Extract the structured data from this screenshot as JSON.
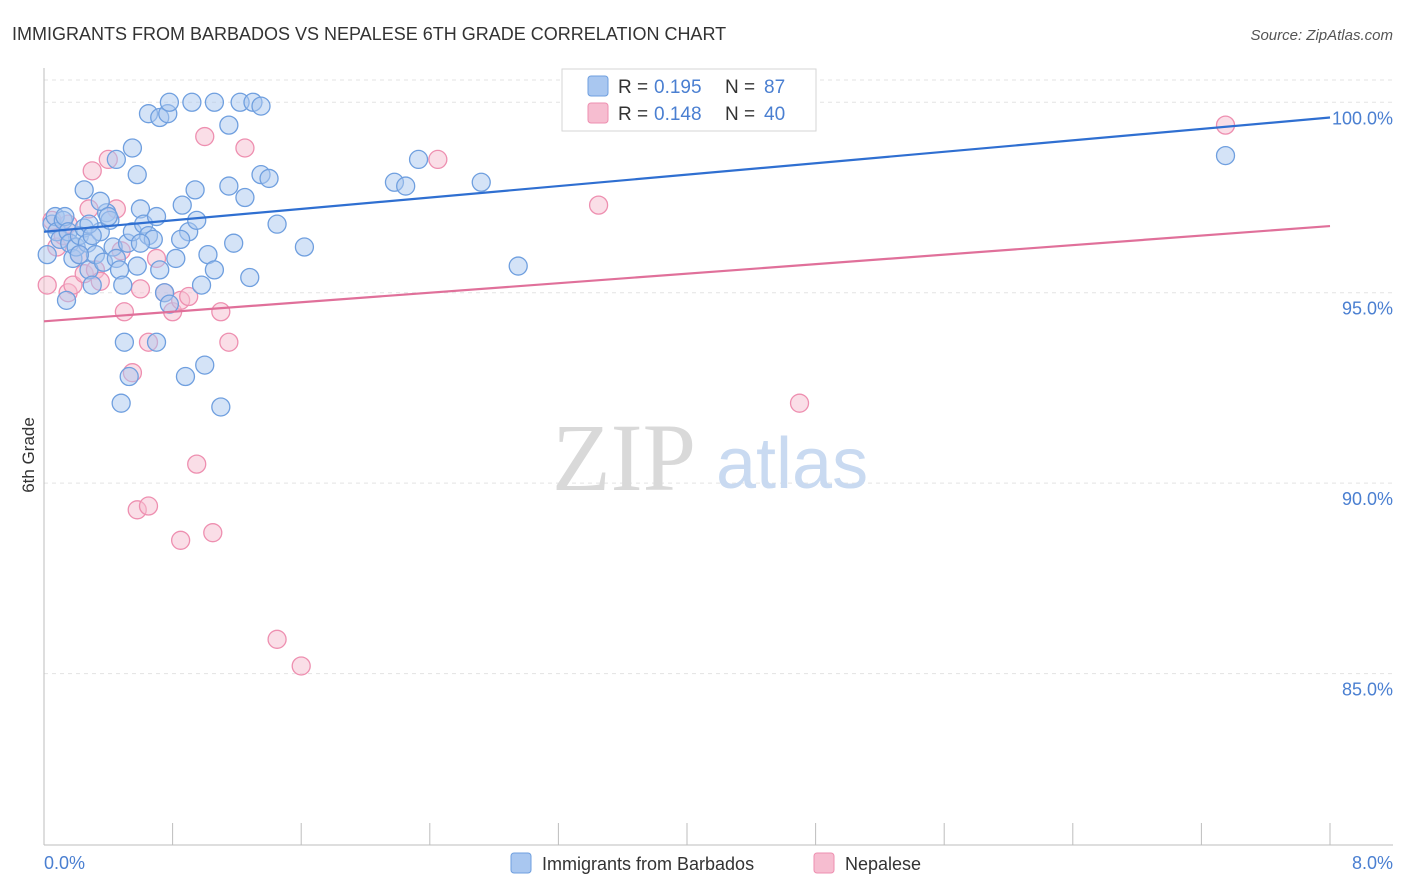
{
  "title": "IMMIGRANTS FROM BARBADOS VS NEPALESE 6TH GRADE CORRELATION CHART",
  "source": "Source: ZipAtlas.com",
  "watermark": {
    "zip": "ZIP",
    "atlas": "atlas"
  },
  "colors": {
    "blue_fill": "#a9c7f0",
    "blue_stroke": "#6f9fdf",
    "blue_line": "#2f6fd1",
    "pink_fill": "#f6bdd0",
    "pink_stroke": "#ee8fb0",
    "pink_line": "#e0709a",
    "tick_text": "#4a7fd1",
    "grid": "#e3e3e3"
  },
  "legend": {
    "rows": [
      {
        "r_label": "R = ",
        "r_value": "0.195",
        "n_label": "N = ",
        "n_value": "87"
      },
      {
        "r_label": "R = ",
        "r_value": "0.148",
        "n_label": "N = ",
        "n_value": "40"
      }
    ]
  },
  "bottom_legend": [
    "Immigrants from Barbados",
    "Nepalese"
  ],
  "chart_data": {
    "type": "scatter",
    "title": "IMMIGRANTS FROM BARBADOS VS NEPALESE 6TH GRADE CORRELATION CHART",
    "xlabel": "",
    "ylabel": "6th Grade",
    "xlim": [
      0.0,
      8.0
    ],
    "ylim": [
      80.5,
      100.9
    ],
    "x_tick_labels": [
      "0.0%",
      "8.0%"
    ],
    "y_ticks": [
      85,
      90,
      95,
      100
    ],
    "y_tick_labels": [
      "85.0%",
      "90.0%",
      "95.0%",
      "100.0%"
    ],
    "grid": true,
    "legend_position": "top-center",
    "series": [
      {
        "name": "Immigrants from Barbados",
        "color": "#6f9fdf",
        "R": 0.195,
        "N": 87,
        "trend": {
          "x": [
            0.0,
            8.0
          ],
          "y": [
            96.6,
            99.6
          ]
        },
        "points": [
          [
            0.05,
            96.8
          ],
          [
            0.07,
            97.0
          ],
          [
            0.08,
            96.6
          ],
          [
            0.1,
            96.4
          ],
          [
            0.12,
            96.9
          ],
          [
            0.13,
            97.0
          ],
          [
            0.15,
            96.6
          ],
          [
            0.16,
            96.3
          ],
          [
            0.18,
            95.9
          ],
          [
            0.2,
            96.2
          ],
          [
            0.22,
            96.5
          ],
          [
            0.25,
            96.7
          ],
          [
            0.27,
            96.3
          ],
          [
            0.28,
            95.6
          ],
          [
            0.3,
            95.2
          ],
          [
            0.32,
            96.0
          ],
          [
            0.35,
            96.6
          ],
          [
            0.37,
            95.8
          ],
          [
            0.39,
            97.1
          ],
          [
            0.41,
            96.9
          ],
          [
            0.43,
            96.2
          ],
          [
            0.45,
            95.9
          ],
          [
            0.47,
            95.6
          ],
          [
            0.49,
            95.2
          ],
          [
            0.52,
            96.3
          ],
          [
            0.55,
            96.6
          ],
          [
            0.58,
            95.7
          ],
          [
            0.6,
            97.2
          ],
          [
            0.62,
            96.8
          ],
          [
            0.65,
            96.5
          ],
          [
            0.68,
            96.4
          ],
          [
            0.7,
            97.0
          ],
          [
            0.72,
            95.6
          ],
          [
            0.75,
            95.0
          ],
          [
            0.78,
            94.7
          ],
          [
            0.82,
            95.9
          ],
          [
            0.86,
            97.3
          ],
          [
            0.9,
            96.6
          ],
          [
            0.94,
            97.7
          ],
          [
            0.98,
            95.2
          ],
          [
            1.02,
            96.0
          ],
          [
            1.06,
            95.6
          ],
          [
            0.25,
            97.7
          ],
          [
            0.35,
            97.4
          ],
          [
            0.45,
            98.5
          ],
          [
            0.55,
            98.8
          ],
          [
            0.58,
            98.1
          ],
          [
            0.65,
            99.7
          ],
          [
            0.72,
            99.6
          ],
          [
            0.77,
            99.7
          ],
          [
            0.78,
            100.0
          ],
          [
            0.92,
            100.0
          ],
          [
            1.06,
            100.0
          ],
          [
            1.15,
            99.4
          ],
          [
            1.22,
            100.0
          ],
          [
            1.3,
            100.0
          ],
          [
            1.35,
            99.9
          ],
          [
            1.15,
            97.8
          ],
          [
            1.25,
            97.5
          ],
          [
            1.18,
            96.3
          ],
          [
            1.28,
            95.4
          ],
          [
            1.45,
            96.8
          ],
          [
            1.62,
            96.2
          ],
          [
            1.35,
            98.1
          ],
          [
            2.18,
            97.9
          ],
          [
            2.25,
            97.8
          ],
          [
            2.33,
            98.5
          ],
          [
            2.72,
            97.9
          ],
          [
            2.95,
            95.7
          ],
          [
            0.5,
            93.7
          ],
          [
            0.7,
            93.7
          ],
          [
            0.53,
            92.8
          ],
          [
            0.88,
            92.8
          ],
          [
            1.0,
            93.1
          ],
          [
            0.48,
            92.1
          ],
          [
            1.1,
            92.0
          ],
          [
            7.35,
            98.6
          ],
          [
            0.22,
            96.0
          ],
          [
            0.28,
            96.8
          ],
          [
            0.6,
            96.3
          ],
          [
            0.85,
            96.4
          ],
          [
            0.95,
            96.9
          ],
          [
            1.4,
            98.0
          ],
          [
            0.4,
            97.0
          ],
          [
            0.3,
            96.5
          ],
          [
            0.14,
            94.8
          ],
          [
            0.02,
            96.0
          ]
        ]
      },
      {
        "name": "Nepalese",
        "color": "#ee8fb0",
        "R": 0.148,
        "N": 40,
        "trend": {
          "x": [
            0.0,
            8.0
          ],
          "y": [
            94.25,
            96.75
          ]
        },
        "points": [
          [
            0.02,
            95.2
          ],
          [
            0.05,
            96.9
          ],
          [
            0.08,
            96.2
          ],
          [
            0.12,
            96.5
          ],
          [
            0.15,
            95.0
          ],
          [
            0.18,
            95.2
          ],
          [
            0.22,
            96.0
          ],
          [
            0.25,
            95.5
          ],
          [
            0.28,
            97.2
          ],
          [
            0.32,
            95.6
          ],
          [
            0.35,
            95.3
          ],
          [
            0.4,
            98.5
          ],
          [
            0.45,
            97.2
          ],
          [
            0.5,
            94.5
          ],
          [
            0.55,
            92.9
          ],
          [
            0.6,
            95.1
          ],
          [
            0.65,
            93.7
          ],
          [
            0.7,
            95.9
          ],
          [
            0.75,
            95.0
          ],
          [
            0.8,
            94.5
          ],
          [
            0.85,
            94.8
          ],
          [
            0.9,
            94.9
          ],
          [
            0.95,
            90.5
          ],
          [
            1.0,
            99.1
          ],
          [
            1.1,
            94.5
          ],
          [
            1.15,
            93.7
          ],
          [
            1.25,
            98.8
          ],
          [
            1.45,
            85.9
          ],
          [
            1.6,
            85.2
          ],
          [
            0.58,
            89.3
          ],
          [
            0.65,
            89.4
          ],
          [
            0.85,
            88.5
          ],
          [
            1.05,
            88.7
          ],
          [
            2.45,
            98.5
          ],
          [
            3.45,
            97.3
          ],
          [
            4.7,
            92.1
          ],
          [
            7.35,
            99.4
          ],
          [
            0.3,
            98.2
          ],
          [
            0.48,
            96.1
          ],
          [
            0.15,
            96.8
          ]
        ]
      }
    ]
  }
}
